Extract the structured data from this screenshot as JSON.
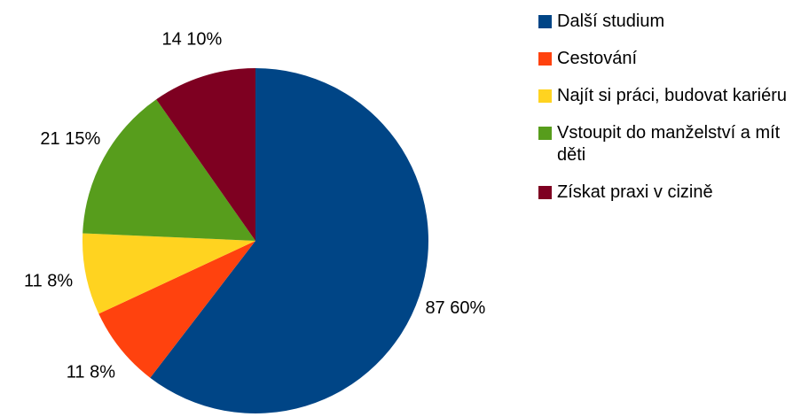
{
  "chart_data": {
    "type": "pie",
    "categories": [
      "Další studium",
      "Cestování",
      "Najít si práci, budovat kariéru",
      "Vstoupit do manželství a mít děti",
      "Získat praxi v cizině"
    ],
    "values": [
      87,
      11,
      11,
      21,
      14
    ],
    "value_labels": [
      "87 60%",
      "11 8%",
      "11 8%",
      "21 15%",
      "14 10%"
    ],
    "colors": [
      "#004586",
      "#ff420e",
      "#ffd320",
      "#579d1c",
      "#7e0021"
    ],
    "legend": "right"
  }
}
